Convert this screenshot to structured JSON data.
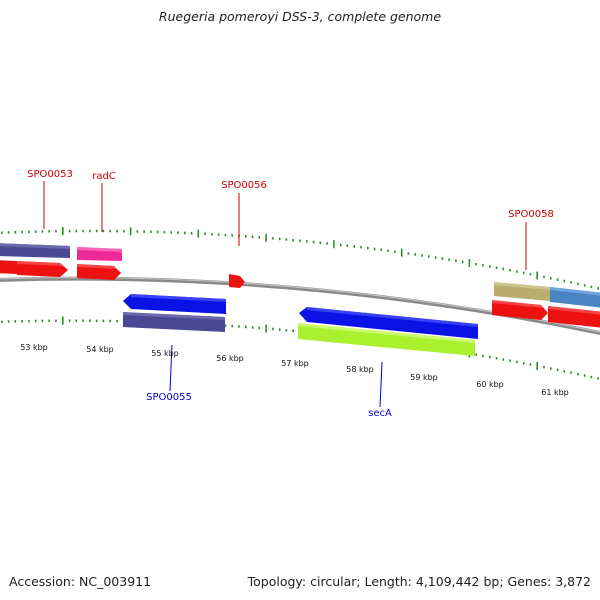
{
  "title": "Ruegeria pomeroyi DSS-3, complete genome",
  "footer": {
    "accession": "Accession: NC_003911",
    "summary": "Topology: circular; Length: 4,109,442 bp; Genes: 3,872"
  },
  "colors": {
    "background": "#ffffff",
    "backbone": "#8a8a8a",
    "tick": "#2e8b2e",
    "label_forward": "#cc0000",
    "label_reverse": "#0000cc",
    "feature_red": "#ee1111",
    "feature_purple": "#4b4792",
    "feature_pink": "#ee2a96",
    "feature_blue": "#0a12e6",
    "feature_lime": "#aaf02e",
    "feature_khaki": "#b9ae6e",
    "feature_steel": "#4a84c4"
  },
  "scale": {
    "unit": "kbp",
    "labels": [
      "53 kbp",
      "54 kbp",
      "55 kbp",
      "56 kbp",
      "57 kbp",
      "58 kbp",
      "59 kbp",
      "60 kbp",
      "61 kbp"
    ]
  },
  "features": [
    {
      "name": "SPO0053",
      "strand": "forward",
      "labeled": true
    },
    {
      "name": "radC",
      "strand": "forward",
      "labeled": true
    },
    {
      "name": "SPO0055",
      "strand": "reverse",
      "labeled": true
    },
    {
      "name": "SPO0056",
      "strand": "forward",
      "labeled": true
    },
    {
      "name": "secA",
      "strand": "reverse",
      "labeled": true
    },
    {
      "name": "SPO0058",
      "strand": "forward",
      "labeled": true
    }
  ]
}
